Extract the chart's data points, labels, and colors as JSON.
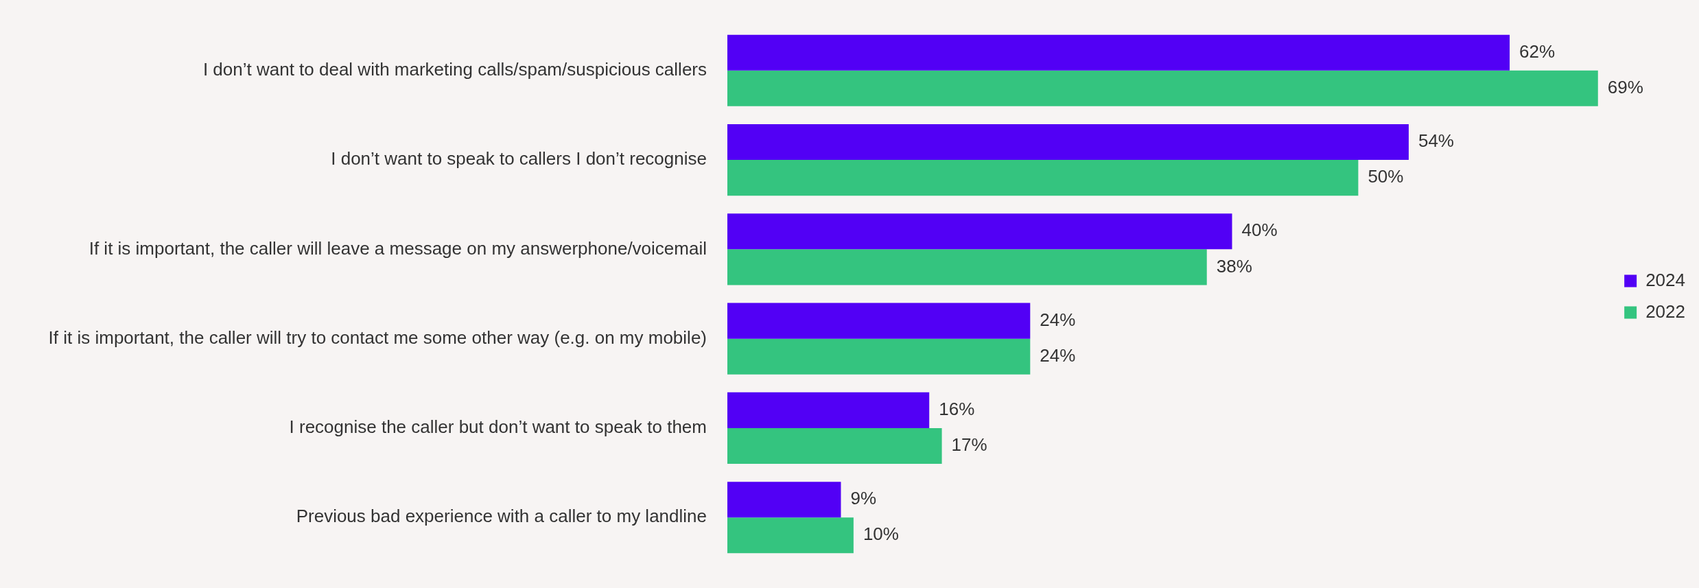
{
  "chart_data": {
    "type": "bar",
    "orientation": "horizontal",
    "categories": [
      "I don’t want to deal with marketing calls/spam/suspicious callers",
      "I don’t want to speak to callers I don’t recognise",
      "If it is important, the caller will leave a message on my answerphone/voicemail",
      "If it is important, the caller will try to contact me some other way (e.g. on my mobile)",
      "I recognise the caller but don’t want to speak to them",
      "Previous bad experience with a caller to my landline"
    ],
    "series": [
      {
        "name": "2024",
        "color": "#5200f5",
        "values": [
          62,
          54,
          40,
          24,
          16,
          9
        ],
        "value_labels": [
          "62%",
          "54%",
          "40%",
          "24%",
          "16%",
          "9%"
        ]
      },
      {
        "name": "2022",
        "color": "#34c47f",
        "values": [
          69,
          50,
          38,
          24,
          17,
          10
        ],
        "value_labels": [
          "69%",
          "50%",
          "38%",
          "24%",
          "17%",
          "10%"
        ]
      }
    ],
    "tick_labels": "y",
    "legend": "right"
  }
}
